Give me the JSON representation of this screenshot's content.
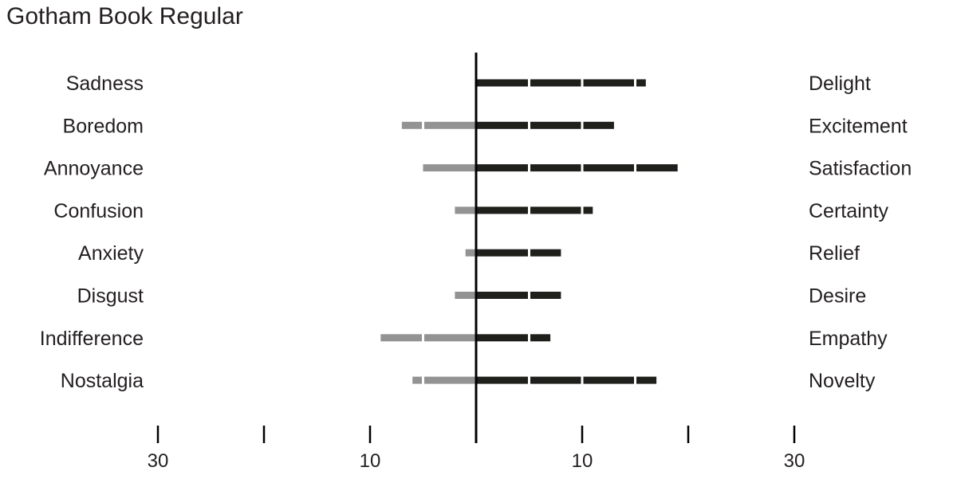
{
  "chart_data": {
    "type": "bar",
    "title": "Gotham Book Regular",
    "categories": [
      "Sadness",
      "Boredom",
      "Annoyance",
      "Confusion",
      "Anxiety",
      "Disgust",
      "Indifference",
      "Nostalgia"
    ],
    "right_categories": [
      "Delight",
      "Excitement",
      "Satisfaction",
      "Certainty",
      "Relief",
      "Desire",
      "Empathy",
      "Novelty"
    ],
    "series": [
      {
        "values": [
          0,
          7,
          5,
          2,
          1,
          2,
          9,
          6
        ],
        "color": "#939393"
      },
      {
        "values": [
          16,
          13,
          19,
          11,
          8,
          8,
          7,
          17
        ],
        "color": "#1f1f1b"
      }
    ],
    "segment_size": 5,
    "xlim": [
      -30,
      30
    ],
    "ticks": [
      -30,
      -20,
      -10,
      0,
      10,
      20,
      30
    ],
    "tick_labels": [
      {
        "value": -30,
        "label": "30"
      },
      {
        "value": -10,
        "label": "10"
      },
      {
        "value": 10,
        "label": "10"
      },
      {
        "value": 30,
        "label": "30"
      }
    ]
  }
}
